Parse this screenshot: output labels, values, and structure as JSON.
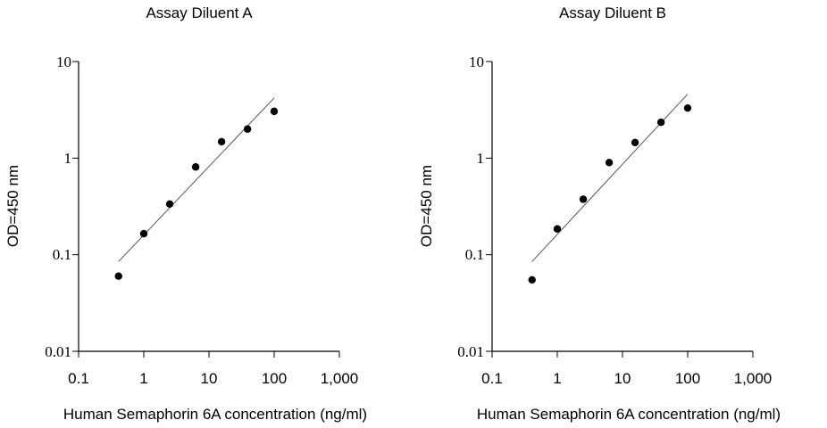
{
  "chart_data": [
    {
      "type": "scatter",
      "title": "Assay Diluent A",
      "xlabel": "Human  Semaphorin 6A concentration (ng/ml)",
      "ylabel": "OD=450 nm",
      "x_scale": "log",
      "y_scale": "log",
      "xlim": [
        0.1,
        1000
      ],
      "ylim": [
        0.01,
        10
      ],
      "x_ticks": [
        "0.1",
        "1",
        "10",
        "100",
        "1,000"
      ],
      "y_ticks": [
        "0.01",
        "0.1",
        "1",
        "10"
      ],
      "grid": false,
      "series": [
        {
          "x": [
            0.41,
            1.0,
            2.5,
            6.25,
            15.6,
            39.0,
            100
          ],
          "y": [
            0.06,
            0.165,
            0.335,
            0.81,
            1.48,
            2.0,
            3.05
          ]
        }
      ],
      "trendline": {
        "x": [
          0.41,
          100
        ],
        "y": [
          0.085,
          4.2
        ]
      }
    },
    {
      "type": "scatter",
      "title": "Assay Diluent B",
      "xlabel": "Human  Semaphorin 6A concentration (ng/ml)",
      "ylabel": "OD=450 nm",
      "x_scale": "log",
      "y_scale": "log",
      "xlim": [
        0.1,
        1000
      ],
      "ylim": [
        0.01,
        10
      ],
      "x_ticks": [
        "0.1",
        "1",
        "10",
        "100",
        "1,000"
      ],
      "y_ticks": [
        "0.01",
        "0.1",
        "1",
        "10"
      ],
      "grid": false,
      "series": [
        {
          "x": [
            0.41,
            1.0,
            2.5,
            6.25,
            15.6,
            39.0,
            100
          ],
          "y": [
            0.055,
            0.185,
            0.375,
            0.9,
            1.45,
            2.35,
            3.3
          ]
        }
      ],
      "trendline": {
        "x": [
          0.41,
          100
        ],
        "y": [
          0.085,
          4.6
        ]
      }
    }
  ]
}
